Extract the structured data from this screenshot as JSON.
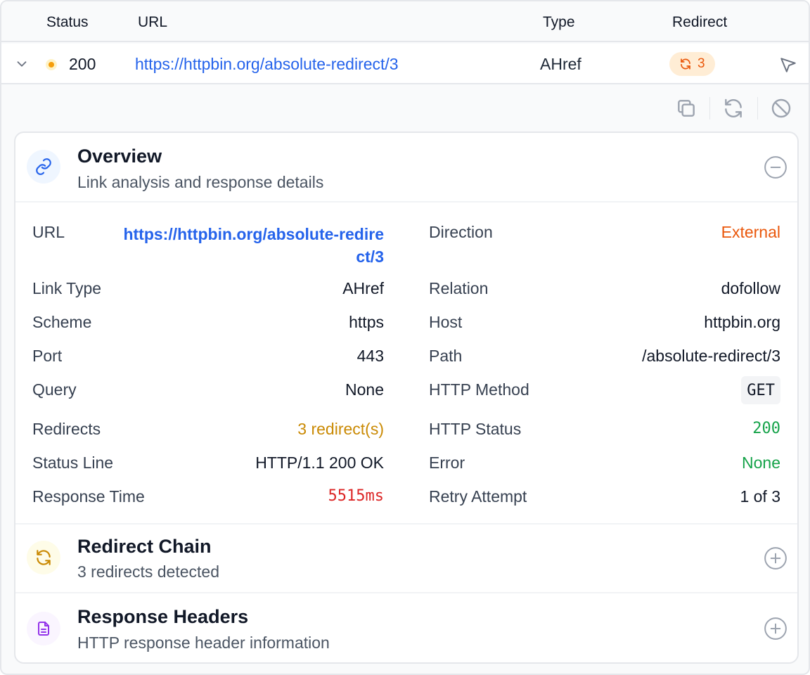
{
  "table": {
    "headers": {
      "status": "Status",
      "url": "URL",
      "type": "Type",
      "redirect": "Redirect"
    },
    "row": {
      "status_code": "200",
      "url": "https://httpbin.org/absolute-redirect/3",
      "type": "AHref",
      "redirect_count": "3"
    }
  },
  "overview": {
    "title": "Overview",
    "subtitle": "Link analysis and response details",
    "fields": {
      "url_label": "URL",
      "url_line1": "https://httpbin.org/absolute-redire",
      "url_line2": "ct/3",
      "direction_label": "Direction",
      "direction_value": "External",
      "link_type_label": "Link Type",
      "link_type_value": "AHref",
      "relation_label": "Relation",
      "relation_value": "dofollow",
      "scheme_label": "Scheme",
      "scheme_value": "https",
      "host_label": "Host",
      "host_value": "httpbin.org",
      "port_label": "Port",
      "port_value": "443",
      "path_label": "Path",
      "path_value": "/absolute-redirect/3",
      "query_label": "Query",
      "query_value": "None",
      "method_label": "HTTP Method",
      "method_value": "GET",
      "redirects_label": "Redirects",
      "redirects_value": "3 redirect(s)",
      "http_status_label": "HTTP Status",
      "http_status_value": "200",
      "status_line_label": "Status Line",
      "status_line_value": "HTTP/1.1 200 OK",
      "error_label": "Error",
      "error_value": "None",
      "response_time_label": "Response Time",
      "response_time_value": "5515ms",
      "retry_label": "Retry Attempt",
      "retry_value": "1 of 3"
    }
  },
  "redirect_chain": {
    "title": "Redirect Chain",
    "subtitle": "3 redirects detected"
  },
  "response_headers": {
    "title": "Response Headers",
    "subtitle": "HTTP response header information"
  },
  "colors": {
    "link": "#2563eb",
    "external": "#ea580c",
    "warning": "#ca8a04",
    "success": "#16a34a",
    "danger": "#dc2626"
  },
  "icons": {
    "expand": "chevron-down-icon",
    "send": "send-icon",
    "copy": "copy-icon",
    "refresh": "refresh-icon",
    "block": "block-icon",
    "overview": "link-icon",
    "redirects": "refresh-icon",
    "headers": "document-icon",
    "collapse": "minus-circle-icon",
    "expand_section": "plus-circle-icon"
  }
}
